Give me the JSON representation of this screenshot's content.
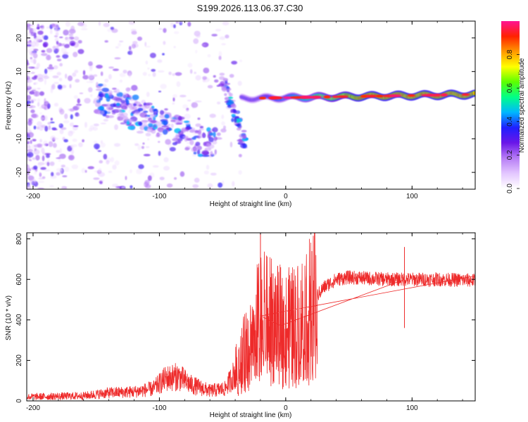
{
  "title": "S199.2026.113.06.37.C30",
  "colors": {
    "trace": "#ee2a2a",
    "axis": "#000000"
  },
  "chart_data": [
    {
      "type": "heatmap",
      "name": "spectrogram",
      "xlabel": "Height of straight line (km)",
      "ylabel": "Frequency (Hz)",
      "xlim": [
        -205,
        150
      ],
      "ylim": [
        -25,
        25
      ],
      "xticks": [
        -200,
        -100,
        0,
        100
      ],
      "yticks": [
        -20,
        -10,
        0,
        10,
        20
      ],
      "colorbar": {
        "label": "Normalized spectral amplitude",
        "range": [
          0,
          1
        ],
        "ticks": [
          "0.0",
          "0.2",
          "0.4",
          "0.6",
          "0.8"
        ],
        "colormap": [
          "#ffffff",
          "#e3c6ff",
          "#b67cf5",
          "#6a16e8",
          "#1f1fff",
          "#00b7ff",
          "#00ff88",
          "#5cff00",
          "#ffff00",
          "#ff9900",
          "#ff2200",
          "#ff1493"
        ]
      },
      "features": {
        "scattered_noise_region_km": [
          -205,
          -35
        ],
        "diagonal_band": {
          "from": [
            -150,
            2
          ],
          "to": [
            -55,
            -12
          ]
        },
        "dominant_ridge": {
          "x_range": [
            -35,
            150
          ],
          "start_freq": 2,
          "end_freq": 3.2,
          "peak_amplitude": 1.0
        }
      }
    },
    {
      "type": "line",
      "name": "snr-trace",
      "xlabel": "Height of straight line (km)",
      "ylabel": "SNR (10 * v/v)",
      "xlim": [
        -205,
        150
      ],
      "ylim": [
        0,
        830
      ],
      "xticks": [
        -200,
        -100,
        0,
        100
      ],
      "yticks": [
        0,
        200,
        400,
        600,
        800
      ],
      "series": [
        {
          "name": "SNR",
          "color": "#ee2a2a",
          "envelope": [
            [
              -205,
              20
            ],
            [
              -160,
              25
            ],
            [
              -140,
              40
            ],
            [
              -120,
              45
            ],
            [
              -105,
              60
            ],
            [
              -95,
              110
            ],
            [
              -85,
              120
            ],
            [
              -75,
              80
            ],
            [
              -60,
              50
            ],
            [
              -48,
              60
            ],
            [
              -40,
              140
            ],
            [
              -30,
              270
            ],
            [
              -20,
              420
            ],
            [
              -10,
              390
            ],
            [
              0,
              360
            ],
            [
              10,
              390
            ],
            [
              20,
              480
            ],
            [
              30,
              560
            ],
            [
              40,
              600
            ],
            [
              50,
              610
            ],
            [
              80,
              600
            ],
            [
              100,
              600
            ],
            [
              120,
              600
            ],
            [
              150,
              595
            ]
          ],
          "spikes": [
            [
              -20,
              830
            ],
            [
              -4,
              660
            ],
            [
              94,
              760
            ],
            [
              94,
              360
            ]
          ]
        }
      ]
    }
  ]
}
